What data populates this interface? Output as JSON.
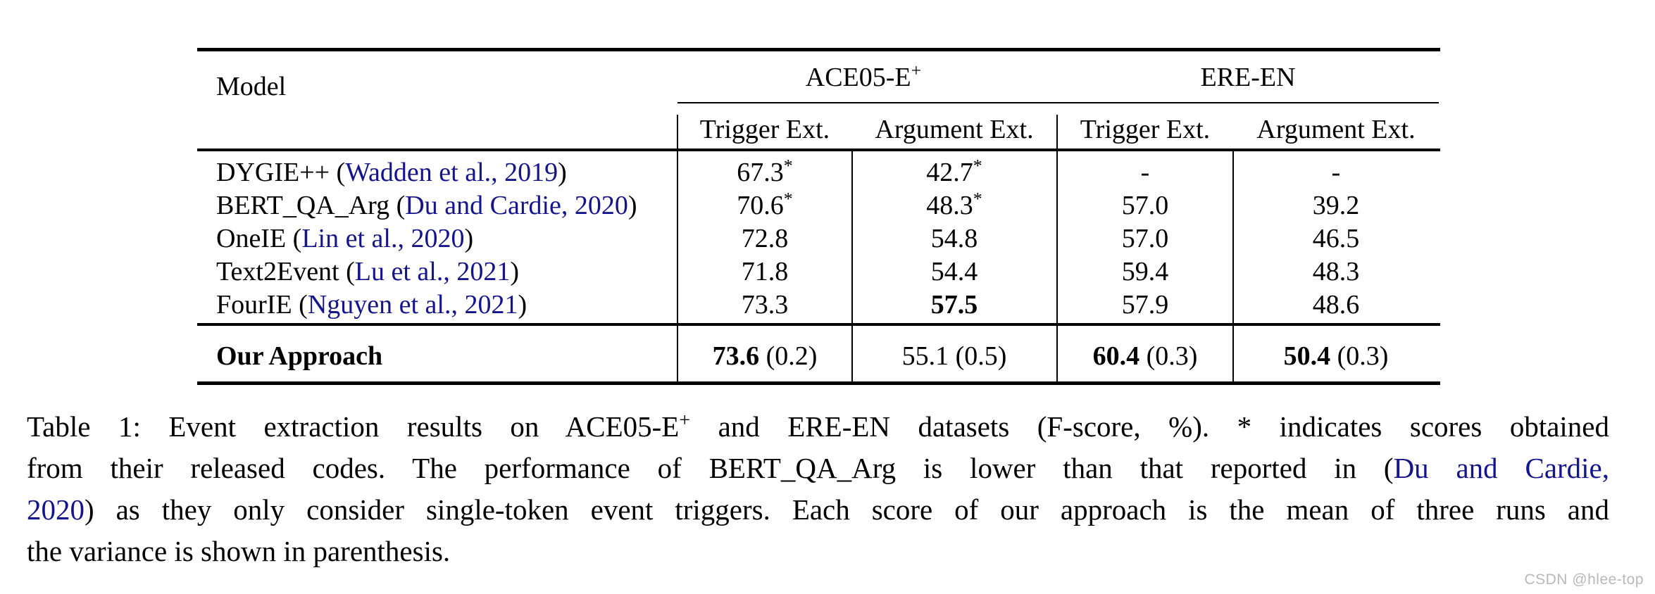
{
  "colors": {
    "citation_blue": "#14148c",
    "rule_black": "#000000",
    "watermark_gray": "#b8b8b8"
  },
  "table": {
    "corner_header": "Model",
    "group_headers": [
      {
        "label": "ACE05-E",
        "sup": "+"
      },
      {
        "label": "ERE-EN",
        "sup": ""
      }
    ],
    "column_headers": [
      "Trigger Ext.",
      "Argument Ext.",
      "Trigger Ext.",
      "Argument Ext."
    ],
    "rows": [
      {
        "model": [
          {
            "t": "DYGIE++ ("
          },
          {
            "t": "Wadden et al., 2019",
            "blue": true
          },
          {
            "t": ")"
          }
        ],
        "cells": [
          [
            {
              "t": "67.3"
            },
            {
              "t": "*",
              "sup": true
            }
          ],
          [
            {
              "t": "42.7"
            },
            {
              "t": "*",
              "sup": true
            }
          ],
          [
            {
              "t": "-"
            }
          ],
          [
            {
              "t": "-"
            }
          ]
        ]
      },
      {
        "model": [
          {
            "t": "BERT_QA_Arg ("
          },
          {
            "t": "Du and Cardie, 2020",
            "blue": true
          },
          {
            "t": ")"
          }
        ],
        "cells": [
          [
            {
              "t": "70.6"
            },
            {
              "t": "*",
              "sup": true
            }
          ],
          [
            {
              "t": "48.3"
            },
            {
              "t": "*",
              "sup": true
            }
          ],
          [
            {
              "t": "57.0"
            }
          ],
          [
            {
              "t": "39.2"
            }
          ]
        ]
      },
      {
        "model": [
          {
            "t": "OneIE ("
          },
          {
            "t": "Lin et al., 2020",
            "blue": true
          },
          {
            "t": ")"
          }
        ],
        "cells": [
          [
            {
              "t": "72.8"
            }
          ],
          [
            {
              "t": "54.8"
            }
          ],
          [
            {
              "t": "57.0"
            }
          ],
          [
            {
              "t": "46.5"
            }
          ]
        ]
      },
      {
        "model": [
          {
            "t": "Text2Event ("
          },
          {
            "t": "Lu et al., 2021",
            "blue": true
          },
          {
            "t": ")"
          }
        ],
        "cells": [
          [
            {
              "t": "71.8"
            }
          ],
          [
            {
              "t": "54.4"
            }
          ],
          [
            {
              "t": "59.4"
            }
          ],
          [
            {
              "t": "48.3"
            }
          ]
        ]
      },
      {
        "model": [
          {
            "t": "FourIE ("
          },
          {
            "t": "Nguyen et al., 2021",
            "blue": true
          },
          {
            "t": ")"
          }
        ],
        "cells": [
          [
            {
              "t": "73.3"
            }
          ],
          [
            {
              "t": "57.5",
              "b": true
            }
          ],
          [
            {
              "t": "57.9"
            }
          ],
          [
            {
              "t": "48.6"
            }
          ]
        ]
      }
    ],
    "final_row": {
      "model": [
        {
          "t": "Our Approach",
          "b": true
        }
      ],
      "cells": [
        [
          {
            "t": "73.6",
            "b": true
          },
          {
            "t": " (0.2)"
          }
        ],
        [
          {
            "t": "55.1 (0.5)"
          }
        ],
        [
          {
            "t": "60.4",
            "b": true
          },
          {
            "t": " (0.3)"
          }
        ],
        [
          {
            "t": "50.4",
            "b": true
          },
          {
            "t": " (0.3)"
          }
        ]
      ]
    }
  },
  "caption": {
    "lines": [
      {
        "justify": true,
        "segments": [
          {
            "t": "Table 1: Event extraction results on ACE05-E"
          },
          {
            "t": "+",
            "sup": true
          },
          {
            "t": " and ERE-EN datasets (F-score, %). * indicates scores obtained"
          }
        ]
      },
      {
        "justify": true,
        "segments": [
          {
            "t": "from their released codes. The performance of BERT_QA_Arg is lower than that reported in ("
          },
          {
            "t": "Du and Cardie,",
            "blue": true
          }
        ]
      },
      {
        "justify": true,
        "segments": [
          {
            "t": "2020",
            "blue": true
          },
          {
            "t": ") as they only consider single-token event triggers. Each score of our approach is the mean of three runs and"
          }
        ]
      },
      {
        "justify": false,
        "segments": [
          {
            "t": "the variance is shown in parenthesis."
          }
        ]
      }
    ]
  },
  "watermark": "CSDN @hlee-top"
}
